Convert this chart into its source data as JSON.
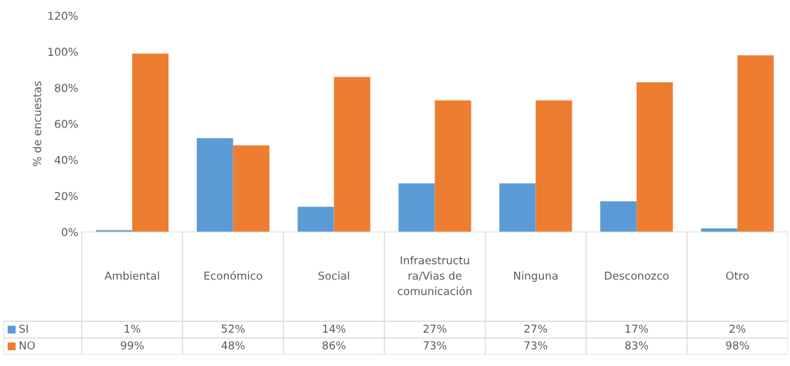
{
  "chart_data": {
    "type": "bar",
    "ylabel": "% de encuestas",
    "categories": [
      "Ambiental",
      "Económico",
      "Social",
      "Infraestructura/Vias de comunicación",
      "Ninguna",
      "Desconozco",
      "Otro"
    ],
    "series": [
      {
        "name": "SI",
        "color": "#5b9bd5",
        "values": [
          1,
          52,
          14,
          27,
          27,
          17,
          2
        ],
        "value_labels": [
          "1%",
          "52%",
          "14%",
          "27%",
          "27%",
          "17%",
          "2%"
        ]
      },
      {
        "name": "NO",
        "color": "#ed7d31",
        "values": [
          99,
          48,
          86,
          73,
          73,
          83,
          98
        ],
        "value_labels": [
          "99%",
          "48%",
          "86%",
          "73%",
          "73%",
          "83%",
          "98%"
        ]
      }
    ],
    "ylim": [
      0,
      120
    ],
    "yticks": [
      {
        "value": 0,
        "label": "0%"
      },
      {
        "value": 20,
        "label": "20%"
      },
      {
        "value": 40,
        "label": "40%"
      },
      {
        "value": 60,
        "label": "60%"
      },
      {
        "value": 80,
        "label": "80%"
      },
      {
        "value": 100,
        "label": "100%"
      },
      {
        "value": 120,
        "label": "120%"
      }
    ],
    "grid": false,
    "legend": "bottom"
  }
}
